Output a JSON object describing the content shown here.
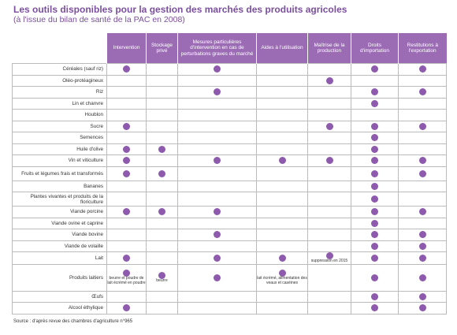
{
  "header": {
    "title": "Les outils disponibles pour la gestion des marchés des produits agricoles",
    "subtitle": "(à l'issue du bilan de santé de la PAC en 2008)"
  },
  "table": {
    "columns": [
      "Intervention",
      "Stockage privé",
      "Mesures particulières d'intervention en cas de perturbations graves du marché",
      "Aides à l'utilisation",
      "Maîtrise de la production",
      "Droits d'importation",
      "Restitutions à l'exportation"
    ],
    "rows": [
      {
        "label": "Céréales (sauf riz)",
        "marks": [
          true,
          false,
          true,
          false,
          false,
          true,
          true
        ]
      },
      {
        "label": "Oléo-protéagineux",
        "marks": [
          false,
          false,
          false,
          false,
          true,
          false,
          false
        ]
      },
      {
        "label": "Riz",
        "marks": [
          false,
          false,
          true,
          false,
          false,
          true,
          true
        ]
      },
      {
        "label": "Lin et chanvre",
        "marks": [
          false,
          false,
          false,
          false,
          false,
          true,
          false
        ]
      },
      {
        "label": "Houblon",
        "marks": [
          false,
          false,
          false,
          false,
          false,
          false,
          false
        ]
      },
      {
        "label": "Sucre",
        "marks": [
          true,
          false,
          false,
          false,
          true,
          true,
          true
        ]
      },
      {
        "label": "Semences",
        "marks": [
          false,
          false,
          false,
          false,
          false,
          true,
          false
        ]
      },
      {
        "label": "Huile d'olive",
        "marks": [
          true,
          true,
          false,
          false,
          false,
          true,
          false
        ]
      },
      {
        "label": "Vin et viticulture",
        "marks": [
          true,
          false,
          true,
          true,
          true,
          true,
          true
        ]
      },
      {
        "label": "Fruits et légumes frais et transformés",
        "marks": [
          true,
          true,
          false,
          false,
          false,
          true,
          true
        ]
      },
      {
        "label": "Bananes",
        "marks": [
          false,
          false,
          false,
          false,
          false,
          true,
          false
        ]
      },
      {
        "label": "Plantes vivantes et produits de la floriculture",
        "marks": [
          false,
          false,
          false,
          false,
          false,
          true,
          false
        ]
      },
      {
        "label": "Viande porcine",
        "marks": [
          true,
          true,
          true,
          false,
          false,
          true,
          true
        ]
      },
      {
        "label": "Viande ovine et caprine",
        "marks": [
          false,
          false,
          false,
          false,
          false,
          true,
          false
        ]
      },
      {
        "label": "Viande bovine",
        "marks": [
          false,
          false,
          true,
          false,
          false,
          true,
          true
        ]
      },
      {
        "label": "Viande de volaille",
        "marks": [
          false,
          false,
          false,
          false,
          false,
          true,
          true
        ]
      },
      {
        "label": "Lait",
        "marks": [
          true,
          false,
          true,
          true,
          true,
          true,
          true
        ],
        "notes": [
          {
            "column": 4,
            "text": "suppression en 2015"
          }
        ]
      },
      {
        "label": "Produits laitiers",
        "marks": [
          true,
          true,
          true,
          true,
          false,
          true,
          true
        ],
        "notes": [
          {
            "column": 0,
            "text": "beurre et poudre de lait écrémé en poudre"
          },
          {
            "column": 1,
            "text": "beurre"
          },
          {
            "column": 3,
            "text": "lait écrémé, alimentation des veaux et caséines"
          }
        ]
      },
      {
        "label": "Œufs",
        "marks": [
          false,
          false,
          false,
          false,
          false,
          true,
          true
        ]
      },
      {
        "label": "Alcool éthylique",
        "marks": [
          true,
          false,
          false,
          false,
          false,
          true,
          true
        ]
      }
    ]
  },
  "footer": {
    "source": "Source : d'après revue des chambres d'agriculture n°965"
  }
}
